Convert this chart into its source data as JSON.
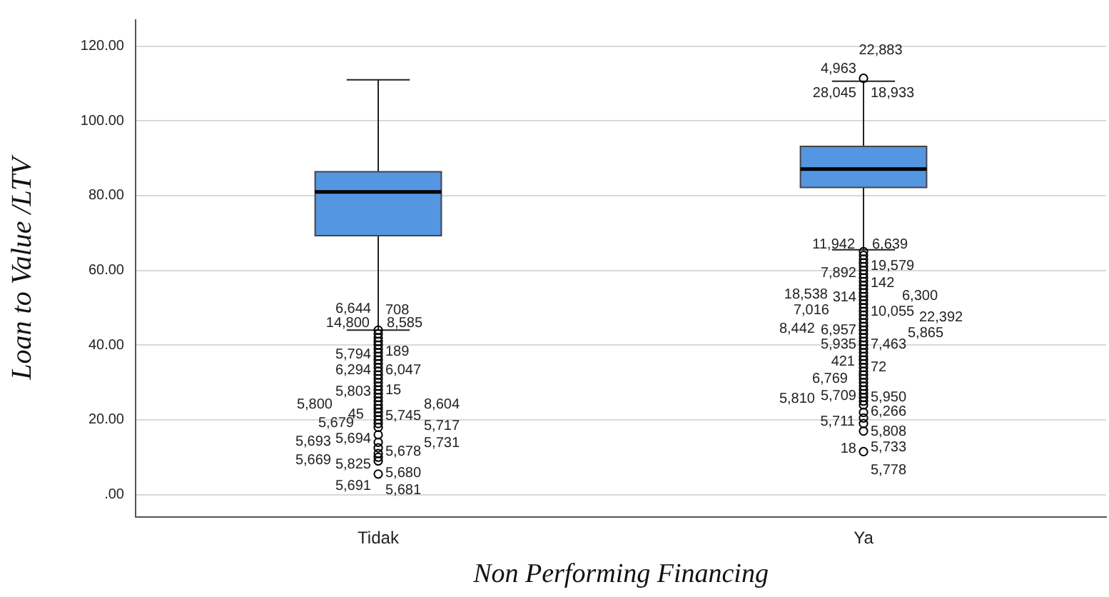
{
  "chart_data": {
    "type": "box",
    "xlabel": "Non Performing Financing",
    "ylabel": "Loan to Value /LTV",
    "categories": [
      "Tidak",
      "Ya"
    ],
    "boxes": [
      {
        "low": 44,
        "q1": 69.3,
        "median": 81,
        "q3": 86.4,
        "high": 111,
        "outliers": [
          44,
          43,
          42,
          41,
          40,
          39,
          38,
          37,
          36,
          35,
          34,
          33,
          32,
          31,
          30,
          29,
          28,
          27,
          26,
          25,
          24,
          23,
          22,
          21,
          20,
          19,
          18,
          16,
          14,
          12.5,
          11,
          10,
          9,
          5.5
        ]
      },
      {
        "low": 65.5,
        "q1": 82.2,
        "median": 87.1,
        "q3": 93.2,
        "high": 110.6,
        "outliers": [
          111.4,
          65,
          64,
          63,
          62,
          61,
          60,
          59,
          58,
          57,
          56,
          55,
          54,
          53,
          52,
          51,
          50,
          49,
          48,
          47,
          46,
          45,
          44,
          43,
          42,
          41,
          40,
          39,
          38,
          37,
          36,
          35,
          34,
          33,
          32,
          31,
          30,
          29,
          28,
          27,
          26,
          25,
          24,
          22,
          20.5,
          19,
          17,
          11.5
        ]
      }
    ],
    "color": "#5596e3",
    "ylim": [
      -6,
      127
    ],
    "yticks": [
      {
        "value": 0,
        "label": ".00"
      },
      {
        "value": 20,
        "label": "20.00"
      },
      {
        "value": 40,
        "label": "40.00"
      },
      {
        "value": 60,
        "label": "60.00"
      },
      {
        "value": 80,
        "label": "80.00"
      },
      {
        "value": 100,
        "label": "100.00"
      },
      {
        "value": 120,
        "label": "120.00"
      }
    ],
    "grid": "y",
    "legend": false,
    "annotations": [
      "6,644",
      "708",
      "14,800",
      "8,585",
      "5,794",
      "189",
      "6,294",
      "6,047",
      "5,803",
      "15",
      "5,800",
      "8,604",
      "45",
      "5,745",
      "5,679",
      "5,717",
      "5,693",
      "5,731",
      "5,694",
      "5,678",
      "5,669",
      "5,680",
      "5,825",
      "5,681",
      "5,691",
      "4,963",
      "22,883",
      "28,045",
      "18,933",
      "11,942",
      "6,639",
      "7,892",
      "19,579",
      "18,538",
      "142",
      "314",
      "6,300",
      "7,016",
      "10,055",
      "8,442",
      "22,392",
      "6,957",
      "5,865",
      "5,935",
      "7,463",
      "421",
      "72",
      "6,769",
      "5,950",
      "5,810",
      "6,266",
      "5,709",
      "5,808",
      "5,711",
      "5,733",
      "18",
      "5,778"
    ]
  }
}
